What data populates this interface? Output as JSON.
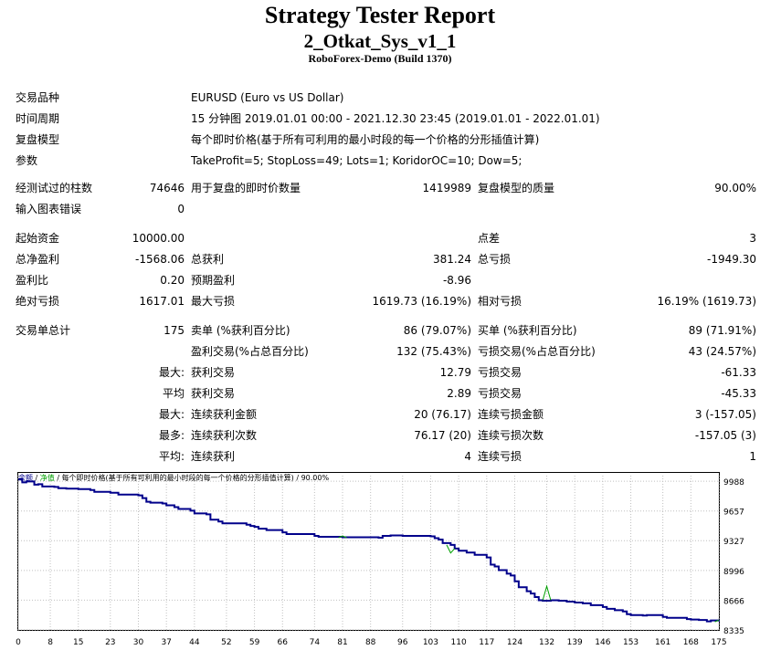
{
  "header": {
    "title": "Strategy Tester Report",
    "expert": "2_Otkat_Sys_v1_1",
    "server": "RoboForex-Demo (Build 1370)"
  },
  "info": {
    "symbol_label": "交易品种",
    "symbol_value": "EURUSD (Euro vs US Dollar)",
    "period_label": "时间周期",
    "period_value": "15 分钟图 2019.01.01 00:00 - 2021.12.30 23:45 (2019.01.01 - 2022.01.01)",
    "model_label": "复盘模型",
    "model_value": "每个即时价格(基于所有可利用的最小时段的每一个价格的分形插值计算)",
    "params_label": "参数",
    "params_value": "TakeProfit=5; StopLoss=49; Lots=1; KoridorOC=10; Dow=5;"
  },
  "quality": {
    "bars_label": "经测试过的柱数",
    "bars_value": "74646",
    "ticks_label": "用于复盘的即时价数量",
    "ticks_value": "1419989",
    "modelq_label": "复盘模型的质量",
    "modelq_value": "90.00%",
    "errors_label": "输入图表错误",
    "errors_value": "0"
  },
  "stats": {
    "deposit_label": "起始资金",
    "deposit_value": "10000.00",
    "spread_label": "点差",
    "spread_value": "3",
    "netprofit_label": "总净盈利",
    "netprofit_value": "-1568.06",
    "grossprofit_label": "总获利",
    "grossprofit_value": "381.24",
    "grossloss_label": "总亏损",
    "grossloss_value": "-1949.30",
    "pf_label": "盈利比",
    "pf_value": "0.20",
    "payoff_label": "预期盈利",
    "payoff_value": "-8.96",
    "absdd_label": "绝对亏损",
    "absdd_value": "1617.01",
    "maxdd_label": "最大亏损",
    "maxdd_value": "1619.73 (16.19%)",
    "reldd_label": "相对亏损",
    "reldd_value": "16.19% (1619.73)"
  },
  "trades": {
    "total_label": "交易单总计",
    "total_value": "175",
    "short_label": "卖单 (%获利百分比)",
    "short_value": "86 (79.07%)",
    "long_label": "买单 (%获利百分比)",
    "long_value": "89 (71.91%)",
    "win_label": "盈利交易(%占总百分比)",
    "win_value": "132 (75.43%)",
    "loss_label": "亏损交易(%占总百分比)",
    "loss_value": "43 (24.57%)",
    "largest_prefix": "最大:",
    "largest_win_label": "获利交易",
    "largest_win_value": "12.79",
    "largest_loss_label": "亏损交易",
    "largest_loss_value": "-61.33",
    "average_prefix": "平均",
    "average_win_label": "获利交易",
    "average_win_value": "2.89",
    "average_loss_label": "亏损交易",
    "average_loss_value": "-45.33",
    "max1_prefix": "最大:",
    "max_consec_win_label": "连续获利金额",
    "max_consec_win_value": "20 (76.17)",
    "max_consec_loss_label": "连续亏损金额",
    "max_consec_loss_value": "3 (-157.05)",
    "max2_prefix": "最多:",
    "maxprofit_consec_label": "连续获利次数",
    "maxprofit_consec_value": "76.17 (20)",
    "maxloss_consec_label": "连续亏损次数",
    "maxloss_consec_value": "-157.05 (3)",
    "avg_prefix": "平均:",
    "avg_consec_win_label": "连续获利",
    "avg_consec_win_value": "4",
    "avg_consec_loss_label": "连续亏损",
    "avg_consec_loss_value": "1"
  },
  "chart_data": {
    "type": "line",
    "legend": {
      "balance": "余额",
      "sep1": " / ",
      "equity": "净值",
      "rest": " / 每个即时价格(基于所有可利用的最小时段的每一个价格的分形插值计算) / 90.00%"
    },
    "colors": {
      "balance": "#00008b",
      "equity": "#00a000",
      "grid": "#c0c0c0",
      "frame": "#000000"
    },
    "x_ticks": [
      0,
      8,
      15,
      23,
      30,
      37,
      44,
      52,
      59,
      66,
      74,
      81,
      88,
      96,
      103,
      110,
      117,
      124,
      132,
      139,
      146,
      153,
      161,
      168,
      175
    ],
    "y_ticks": [
      9988,
      9657,
      9327,
      8996,
      8666,
      8335
    ],
    "xlim": [
      0,
      175
    ],
    "ylim": [
      8335,
      10050
    ],
    "series": [
      {
        "name": "余额",
        "x": [
          0,
          1,
          2,
          4,
          5,
          6,
          9,
          10,
          12,
          15,
          18,
          19,
          23,
          25,
          30,
          31,
          32,
          33,
          36,
          37,
          39,
          40,
          43,
          44,
          47,
          48,
          50,
          51,
          57,
          58,
          59,
          60,
          62,
          66,
          67,
          74,
          75,
          81,
          88,
          90,
          91,
          93,
          96,
          103,
          104,
          105,
          106,
          108,
          109,
          110,
          112,
          114,
          117,
          118,
          119,
          120,
          122,
          123,
          124,
          125,
          127,
          128,
          129,
          130,
          131,
          133,
          135,
          137,
          139,
          141,
          143,
          146,
          147,
          149,
          151,
          152,
          153,
          156,
          157,
          161,
          162,
          167,
          168,
          170,
          172,
          173,
          175
        ],
        "y": [
          10010,
          9975,
          9985,
          9950,
          9955,
          9930,
          9925,
          9910,
          9905,
          9900,
          9890,
          9870,
          9860,
          9840,
          9830,
          9800,
          9760,
          9750,
          9740,
          9720,
          9700,
          9680,
          9660,
          9630,
          9620,
          9560,
          9540,
          9520,
          9505,
          9490,
          9480,
          9460,
          9445,
          9420,
          9400,
          9380,
          9370,
          9365,
          9365,
          9360,
          9380,
          9385,
          9380,
          9375,
          9355,
          9340,
          9300,
          9280,
          9240,
          9215,
          9195,
          9170,
          9140,
          9060,
          9040,
          9000,
          8960,
          8940,
          8875,
          8810,
          8765,
          8740,
          8700,
          8665,
          8660,
          8665,
          8660,
          8650,
          8640,
          8630,
          8610,
          8590,
          8570,
          8555,
          8540,
          8510,
          8500,
          8495,
          8500,
          8480,
          8470,
          8455,
          8450,
          8445,
          8430,
          8440,
          8430
        ]
      },
      {
        "name": "净值",
        "x": [
          107,
          108,
          109,
          131,
          132,
          133,
          80,
          81,
          82,
          174,
          175
        ],
        "y": [
          9280,
          9190,
          9240,
          8665,
          8820,
          8665,
          9360,
          9380,
          9360,
          8425,
          8445
        ]
      }
    ]
  }
}
